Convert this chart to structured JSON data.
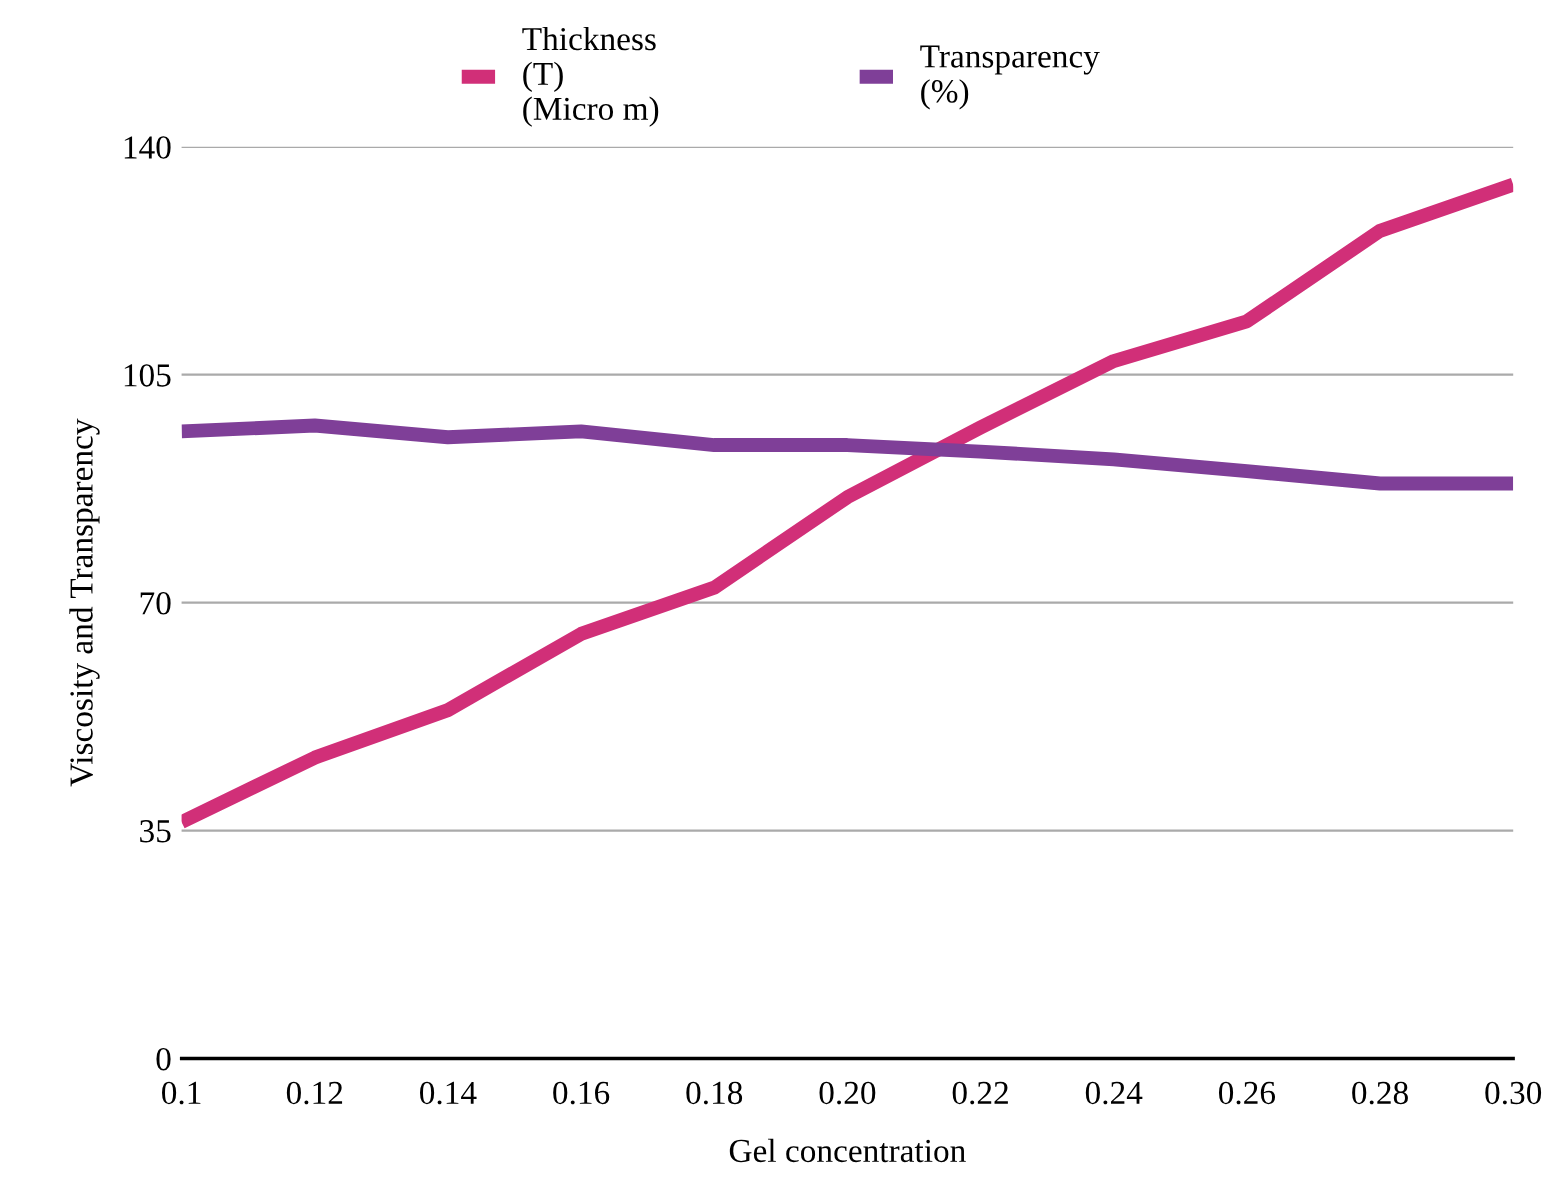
{
  "chart_data": {
    "type": "line",
    "xlabel": "Gel concentration",
    "ylabel": "Viscosity and Transparency",
    "categories": [
      "0.1",
      "0.12",
      "0.14",
      "0.16",
      "0.18",
      "0.20",
      "0.22",
      "0.24",
      "0.26",
      "0.28",
      "0.30"
    ],
    "series": [
      {
        "name": "Thickness\n(T)\n(Micro m)",
        "color": "#d12f78",
        "values": [
          36.3,
          46.2,
          53.5,
          65.2,
          72.3,
          86.2,
          96.9,
          107.1,
          113.2,
          127.1,
          134.2
        ]
      },
      {
        "name": "Transparency\n(%)",
        "color": "#7f3f98",
        "values": [
          96.3,
          97.2,
          95.4,
          96.3,
          94.2,
          94.2,
          93.2,
          92.0,
          90.2,
          88.3,
          88.3
        ]
      }
    ],
    "ylim": [
      0,
      140
    ],
    "yticks": [
      0,
      35,
      70,
      105,
      140
    ],
    "grid": "y",
    "legend": "top",
    "marker": "none",
    "line_style": "solid"
  }
}
